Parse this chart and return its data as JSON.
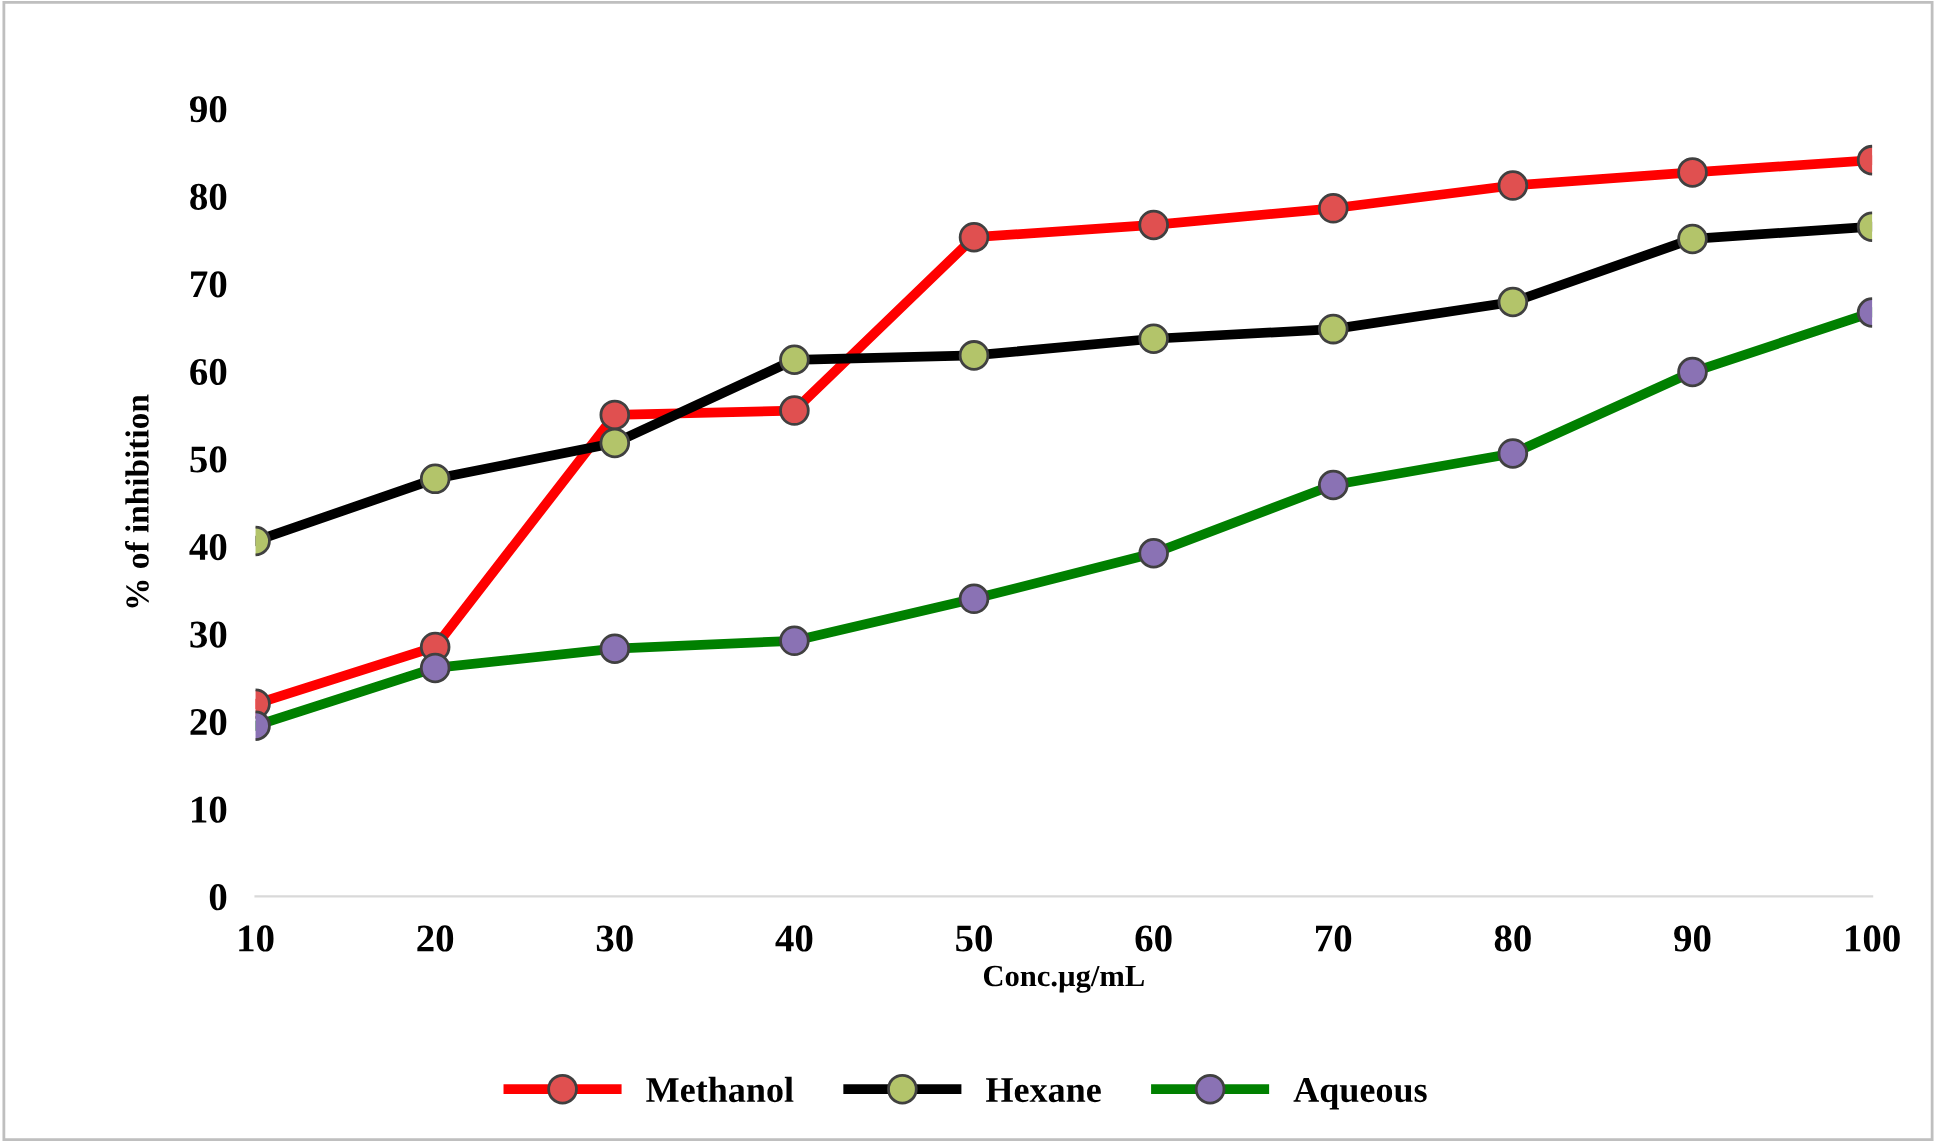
{
  "chart_data": {
    "type": "line",
    "xlabel": "Conc.µg/mL",
    "ylabel": "% of inhibition",
    "categories": [
      "10",
      "20",
      "30",
      "40",
      "50",
      "60",
      "70",
      "80",
      "90",
      "100"
    ],
    "series": [
      {
        "name": "Methanol",
        "color": "#ff0000",
        "values": [
          22,
          28.5,
          55,
          55.5,
          75.3,
          76.7,
          78.6,
          81.2,
          82.7,
          84.1
        ]
      },
      {
        "name": "Hexane",
        "color": "#000000",
        "values": [
          40.6,
          47.7,
          51.8,
          61.3,
          61.8,
          63.7,
          64.8,
          67.9,
          75.1,
          76.5
        ]
      },
      {
        "name": "Aqueous",
        "color": "#008000",
        "values": [
          19.5,
          26.1,
          28.3,
          29.2,
          34,
          39.2,
          47,
          50.6,
          59.9,
          66.7
        ]
      }
    ],
    "ylim": [
      0,
      90
    ],
    "yticks": [
      0,
      10,
      20,
      30,
      40,
      50,
      60,
      70,
      80,
      90
    ],
    "grid": false,
    "legend": "bottom",
    "marker": "circle",
    "line_style": "solid"
  }
}
